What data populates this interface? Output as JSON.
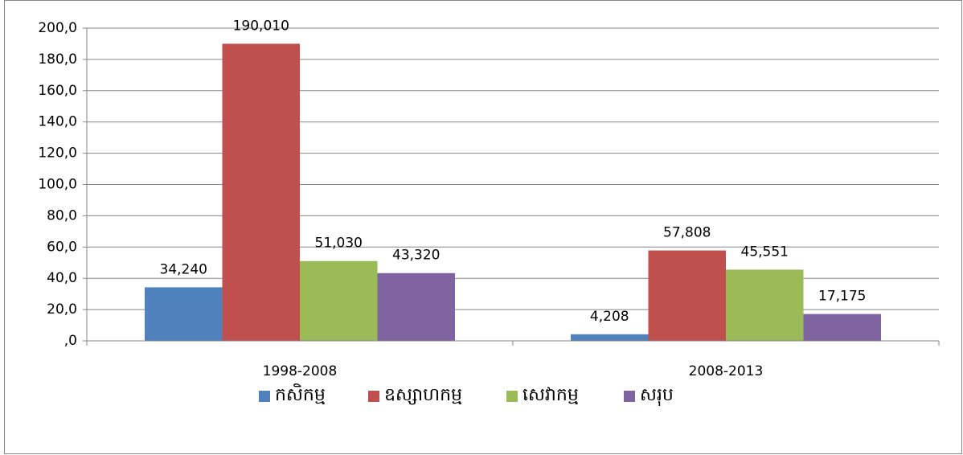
{
  "chart_data": {
    "type": "bar",
    "categories": [
      "1998-2008",
      "2008-2013"
    ],
    "series": [
      {
        "name": "កសិកម្ម",
        "color": "#4f81bd",
        "values": [
          34.24,
          4.208
        ],
        "value_labels": [
          "34,240",
          "4,208"
        ]
      },
      {
        "name": "ឧស្សាហកម្ម",
        "color": "#c0504d",
        "values": [
          190.01,
          57.808
        ],
        "value_labels": [
          "190,010",
          "57,808"
        ]
      },
      {
        "name": "សេវាកម្ម",
        "color": "#9bbb59",
        "values": [
          51.03,
          45.551
        ],
        "value_labels": [
          "51,030",
          "45,551"
        ]
      },
      {
        "name": "សរុប",
        "color": "#8064a2",
        "values": [
          43.32,
          17.175
        ],
        "value_labels": [
          "43,320",
          "17,175"
        ]
      }
    ],
    "ylim": [
      0,
      200
    ],
    "yticks": [
      {
        "value": 0,
        "label": ",0"
      },
      {
        "value": 20,
        "label": "20,0"
      },
      {
        "value": 40,
        "label": "40,0"
      },
      {
        "value": 60,
        "label": "60,0"
      },
      {
        "value": 80,
        "label": "80,0"
      },
      {
        "value": 100,
        "label": "100,0"
      },
      {
        "value": 120,
        "label": "120,0"
      },
      {
        "value": 140,
        "label": "140,0"
      },
      {
        "value": 160,
        "label": "160,0"
      },
      {
        "value": 180,
        "label": "180,0"
      },
      {
        "value": 200,
        "label": "200,0"
      }
    ],
    "grid": true,
    "legend": "bottom"
  }
}
